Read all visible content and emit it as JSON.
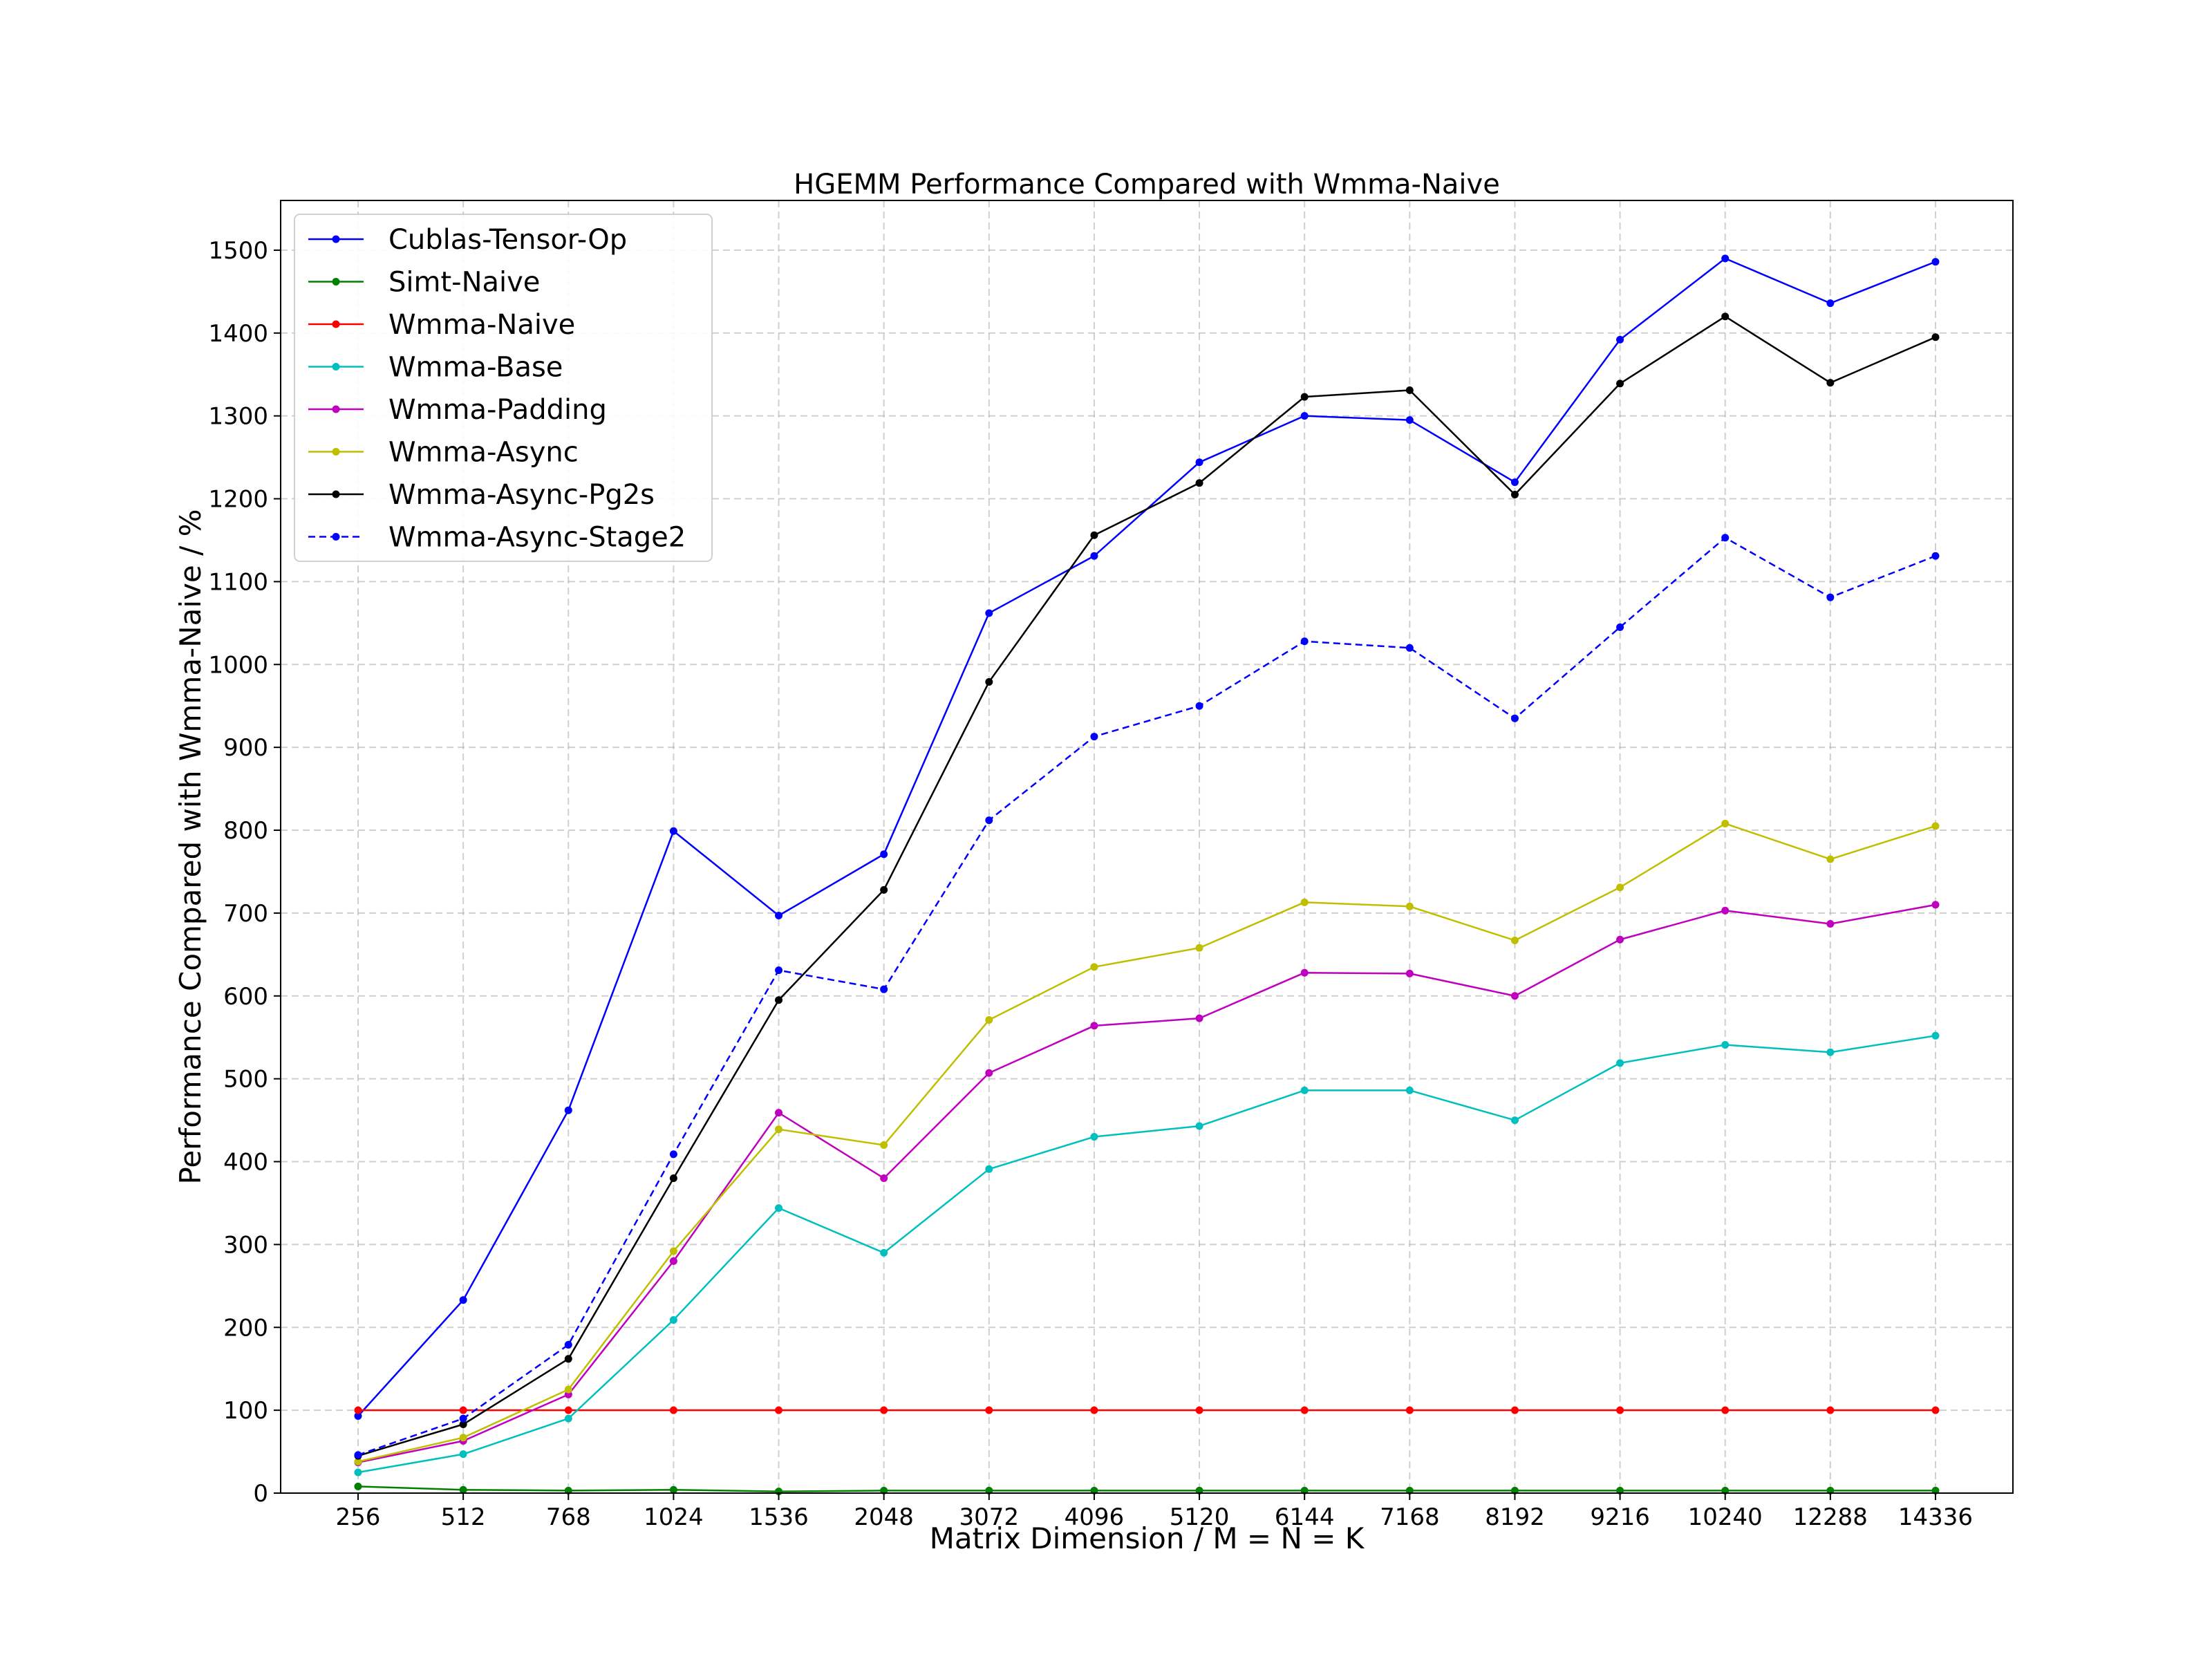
{
  "chart_data": {
    "type": "line",
    "title": "HGEMM Performance Compared with Wmma-Naive",
    "xlabel": "Matrix Dimension / M = N = K",
    "ylabel": "Performance Compared with Wmma-Naive / %",
    "categories": [
      "256",
      "512",
      "768",
      "1024",
      "1536",
      "2048",
      "3072",
      "4096",
      "5120",
      "6144",
      "7168",
      "8192",
      "9216",
      "10240",
      "12288",
      "14336"
    ],
    "ylim": [
      0,
      1560
    ],
    "yticks": [
      0,
      100,
      200,
      300,
      400,
      500,
      600,
      700,
      800,
      900,
      1000,
      1100,
      1200,
      1300,
      1400,
      1500
    ],
    "grid": true,
    "legend_position": "top-left",
    "series": [
      {
        "name": "Cublas-Tensor-Op",
        "color": "#0000ff",
        "style": "solid",
        "values": [
          93,
          233,
          462,
          799,
          697,
          771,
          1062,
          1131,
          1244,
          1300,
          1295,
          1220,
          1392,
          1490,
          1436,
          1486
        ]
      },
      {
        "name": "Simt-Naive",
        "color": "#008000",
        "style": "solid",
        "values": [
          8,
          4,
          3,
          4,
          2,
          3,
          3,
          3,
          3,
          3,
          3,
          3,
          3,
          3,
          3,
          3
        ]
      },
      {
        "name": "Wmma-Naive",
        "color": "#ff0000",
        "style": "solid",
        "values": [
          100,
          100,
          100,
          100,
          100,
          100,
          100,
          100,
          100,
          100,
          100,
          100,
          100,
          100,
          100,
          100
        ]
      },
      {
        "name": "Wmma-Base",
        "color": "#00bfbf",
        "style": "solid",
        "values": [
          25,
          47,
          90,
          209,
          344,
          290,
          391,
          430,
          443,
          486,
          486,
          450,
          519,
          541,
          532,
          552
        ]
      },
      {
        "name": "Wmma-Padding",
        "color": "#bf00bf",
        "style": "solid",
        "values": [
          37,
          63,
          119,
          280,
          459,
          380,
          507,
          564,
          573,
          628,
          627,
          600,
          668,
          703,
          687,
          710
        ]
      },
      {
        "name": "Wmma-Async",
        "color": "#bfbf00",
        "style": "solid",
        "values": [
          38,
          67,
          125,
          292,
          439,
          420,
          571,
          635,
          658,
          713,
          708,
          667,
          731,
          808,
          765,
          805
        ]
      },
      {
        "name": "Wmma-Async-Pg2s",
        "color": "#000000",
        "style": "solid",
        "values": [
          45,
          83,
          162,
          380,
          595,
          728,
          979,
          1156,
          1219,
          1323,
          1331,
          1205,
          1339,
          1420,
          1340,
          1395
        ]
      },
      {
        "name": "Wmma-Async-Stage2",
        "color": "#0000ff",
        "style": "dashed",
        "values": [
          46,
          90,
          179,
          409,
          631,
          608,
          812,
          913,
          950,
          1028,
          1020,
          935,
          1045,
          1153,
          1081,
          1131
        ]
      }
    ]
  }
}
